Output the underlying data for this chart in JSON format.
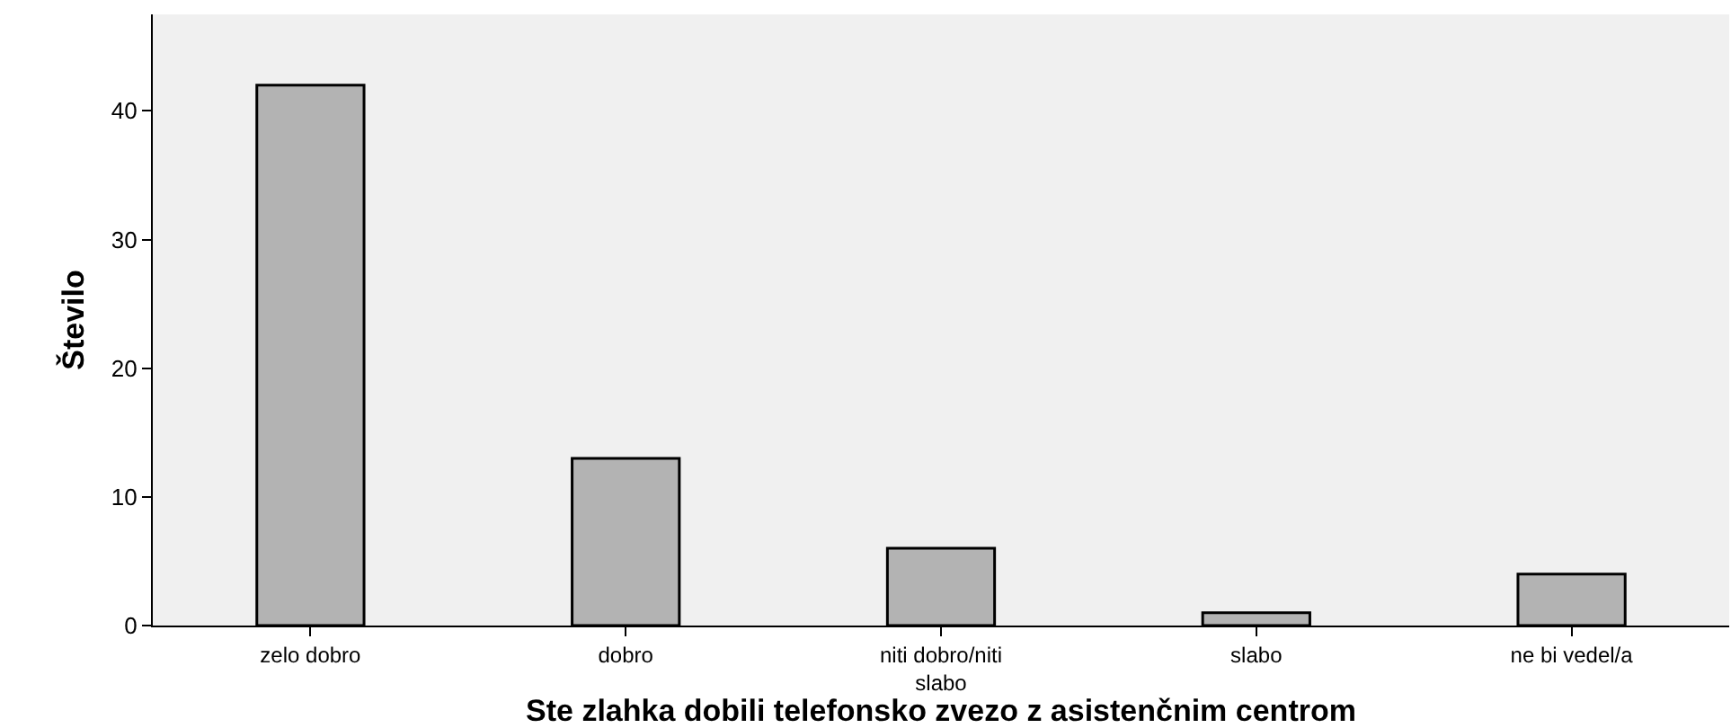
{
  "chart_data": {
    "type": "bar",
    "xlabel": "Ste zlahka dobili telefonsko zvezo z asistenčnim centrom",
    "ylabel": "Število",
    "categories": [
      "zelo dobro",
      "dobro",
      "niti dobro/niti slabo",
      "slabo",
      "ne bi vedel/a"
    ],
    "values": [
      42,
      13,
      6,
      1,
      4
    ],
    "color": "#b3b3b3",
    "ylim": [
      0,
      47.5
    ],
    "yticks": [
      0,
      10,
      20,
      30,
      40
    ],
    "grid": false
  }
}
